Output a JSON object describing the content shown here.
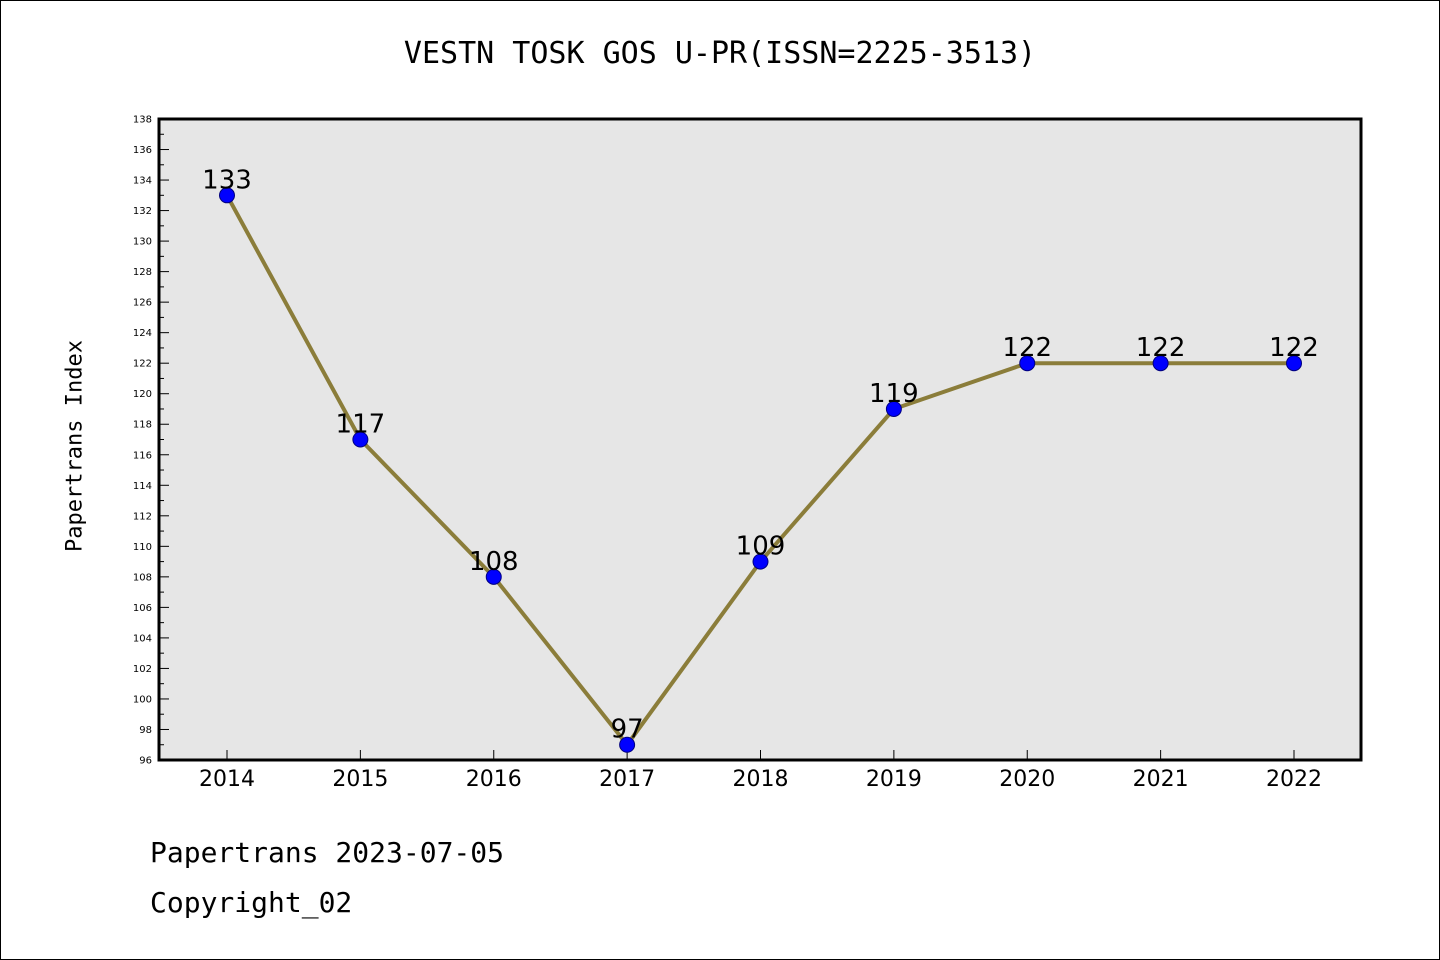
{
  "chart_data": {
    "type": "line",
    "title": "VESTN TOSK GOS U-PR(ISSN=2225-3513)",
    "ylabel": "Papertrans Index",
    "xlabel": "",
    "categories": [
      "2014",
      "2015",
      "2016",
      "2017",
      "2018",
      "2019",
      "2020",
      "2021",
      "2022"
    ],
    "series": [
      {
        "values": [
          133,
          117,
          108,
          97,
          109,
          119,
          122,
          122,
          122
        ]
      }
    ],
    "data_labels": [
      "133",
      "117",
      "108",
      "97",
      "109",
      "119",
      "122",
      "122",
      "122"
    ],
    "ylim": [
      96,
      138
    ],
    "y_ticks": [
      "96",
      "98",
      "100",
      "102",
      "104",
      "106",
      "108",
      "110",
      "112",
      "114",
      "116",
      "118",
      "120",
      "122",
      "124",
      "126",
      "128",
      "130",
      "132",
      "134",
      "136",
      "138"
    ],
    "grid": false,
    "legend": "none",
    "colors": {
      "line": "#8b7d3a",
      "marker": "#0000ff",
      "marker_edge": "#000080",
      "plot_bg": "#e6e6e6"
    }
  },
  "footer": {
    "date_text": "Papertrans 2023-07-05",
    "copyright_text": "Copyright_02"
  }
}
